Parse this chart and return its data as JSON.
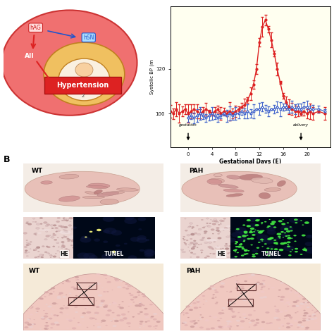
{
  "fig_width": 4.74,
  "fig_height": 4.74,
  "fig_dpi": 100,
  "background_color": "#ffffff",
  "panel_B_label": "B",
  "graph_bg": "#fffff0",
  "graph_ylabel": "Systolic BP (m",
  "graph_xlabel": "Gestational Days (E)",
  "graph_xticks": [
    0,
    4,
    8,
    12,
    16,
    20
  ],
  "graph_yticks": [
    100,
    120
  ],
  "graph_ylim": [
    85,
    148
  ],
  "graph_xlim": [
    -3,
    24
  ],
  "red_x": [
    -3,
    -2.5,
    -2,
    -1.5,
    -1,
    -0.5,
    0,
    0.5,
    1,
    1.5,
    2,
    2.5,
    3,
    3.5,
    4,
    4.5,
    5,
    5.5,
    6,
    6.5,
    7,
    7.5,
    8,
    8.5,
    9,
    9.5,
    10,
    10.5,
    11,
    11.5,
    12,
    12.5,
    13,
    13.5,
    14,
    14.5,
    15,
    15.5,
    16,
    16.5,
    17,
    17.5,
    18,
    18.5,
    19,
    19.5,
    20,
    20.5,
    21,
    22,
    23
  ],
  "red_y": [
    101,
    100,
    102,
    100,
    101,
    102,
    100,
    101,
    102,
    101,
    100,
    101,
    102,
    101,
    100,
    101,
    102,
    100,
    101,
    100,
    101,
    100,
    101,
    102,
    103,
    104,
    106,
    109,
    113,
    120,
    132,
    139,
    142,
    138,
    133,
    127,
    120,
    114,
    108,
    105,
    103,
    102,
    101,
    101,
    100,
    101,
    100,
    101,
    100,
    101,
    100
  ],
  "blue_x": [
    0,
    0.5,
    1,
    1.5,
    2,
    2.5,
    3,
    3.5,
    4,
    4.5,
    5,
    5.5,
    6,
    6.5,
    7,
    7.5,
    8,
    8.5,
    9,
    9.5,
    10,
    10.5,
    11,
    11.5,
    12,
    12.5,
    13,
    13.5,
    14,
    14.5,
    15,
    15.5,
    16,
    16.5,
    17,
    17.5,
    18,
    18.5,
    19,
    19.5,
    20,
    20.5,
    21,
    22,
    23
  ],
  "blue_y": [
    98,
    99,
    98,
    99,
    100,
    99,
    98,
    99,
    100,
    99,
    98,
    99,
    100,
    99,
    100,
    99,
    100,
    100,
    101,
    100,
    101,
    100,
    101,
    102,
    102,
    103,
    102,
    101,
    102,
    102,
    103,
    102,
    103,
    103,
    102,
    103,
    102,
    103,
    102,
    103,
    103,
    102,
    102,
    102,
    101
  ],
  "gestation_label": "gestation",
  "delivery_label": "delivery",
  "wt_label_top": "WT",
  "pah_label_top": "PAH",
  "wt_label_bottom": "WT",
  "pah_label_bottom": "PAH",
  "he_label": "HE",
  "tunel_label": "TUNEL",
  "mid_wt_he_color": "#e8d0d0",
  "mid_wt_tunel_color": "#000020",
  "mid_pah_he_color": "#e0c8c8",
  "mid_pah_tunel_color": "#000820",
  "tunel_dots_wt_color": "#ffff80",
  "tunel_dots_pah_color": "#44ee44",
  "bot_wt_color": "#f8e8d8",
  "bot_pah_color": "#f8e8d8"
}
